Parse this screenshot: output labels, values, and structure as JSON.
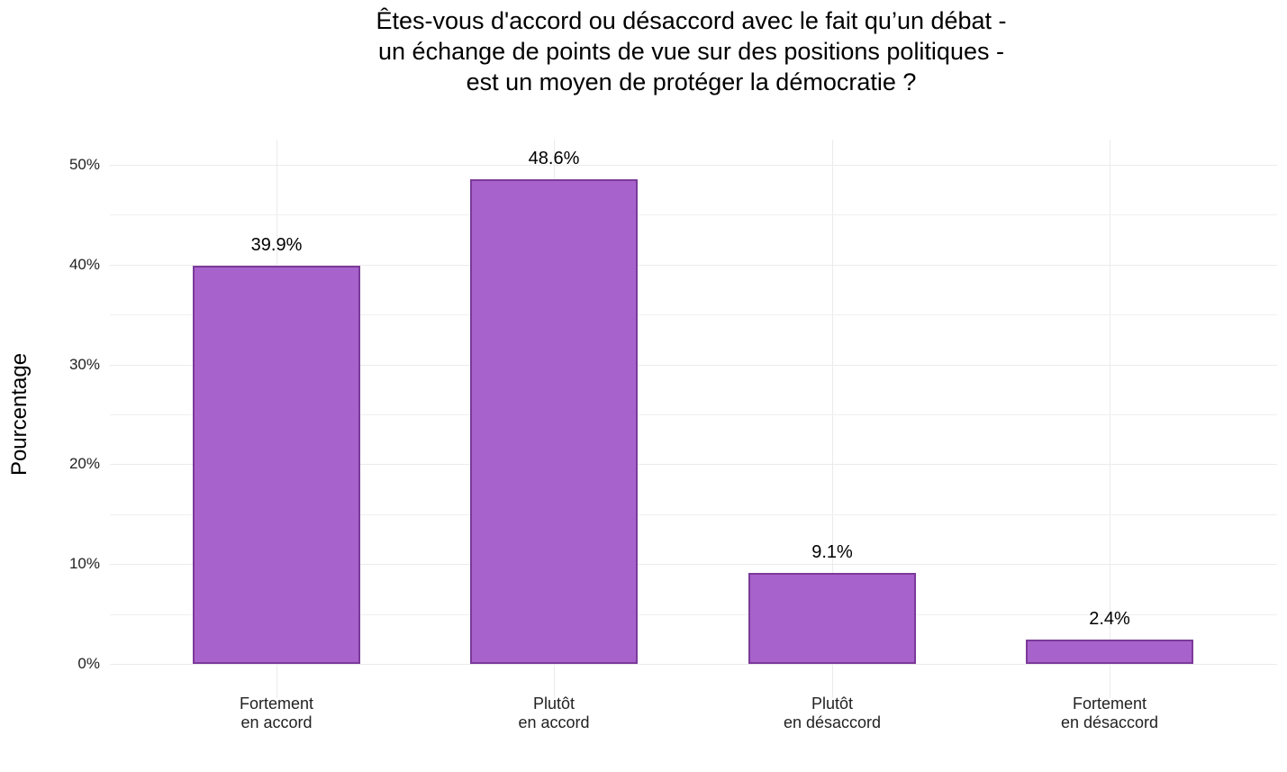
{
  "chart_data": {
    "type": "bar",
    "title": "Êtes-vous d'accord ou désaccord avec le fait qu’un débat - un échange de points de vue sur des positions politiques - est un moyen de protéger la démocratie ?",
    "title_lines": [
      "Êtes-vous d'accord ou désaccord avec le fait qu’un débat -",
      "un échange de points de vue sur des positions politiques -",
      "est un moyen de protéger la démocratie ?"
    ],
    "xlabel": "",
    "ylabel": "Pourcentage",
    "categories": [
      "Fortement en accord",
      "Plutôt en accord",
      "Plutôt en désaccord",
      "Fortement en désaccord"
    ],
    "category_lines": [
      [
        "Fortement",
        "en accord"
      ],
      [
        "Plutôt",
        "en accord"
      ],
      [
        "Plutôt",
        "en désaccord"
      ],
      [
        "Fortement",
        "en désaccord"
      ]
    ],
    "values": [
      39.9,
      48.6,
      9.1,
      2.4
    ],
    "value_labels": [
      "39.9%",
      "48.6%",
      "9.1%",
      "2.4%"
    ],
    "ylim": [
      0,
      50
    ],
    "yticks": [
      0,
      10,
      20,
      30,
      40,
      50
    ],
    "ytick_labels": [
      "0%",
      "10%",
      "20%",
      "30%",
      "40%",
      "50%"
    ],
    "grid": true,
    "legend": null,
    "colors": {
      "bar_fill": "#a862cc",
      "bar_border": "#7b3a9a",
      "grid": "#ebebeb"
    }
  }
}
